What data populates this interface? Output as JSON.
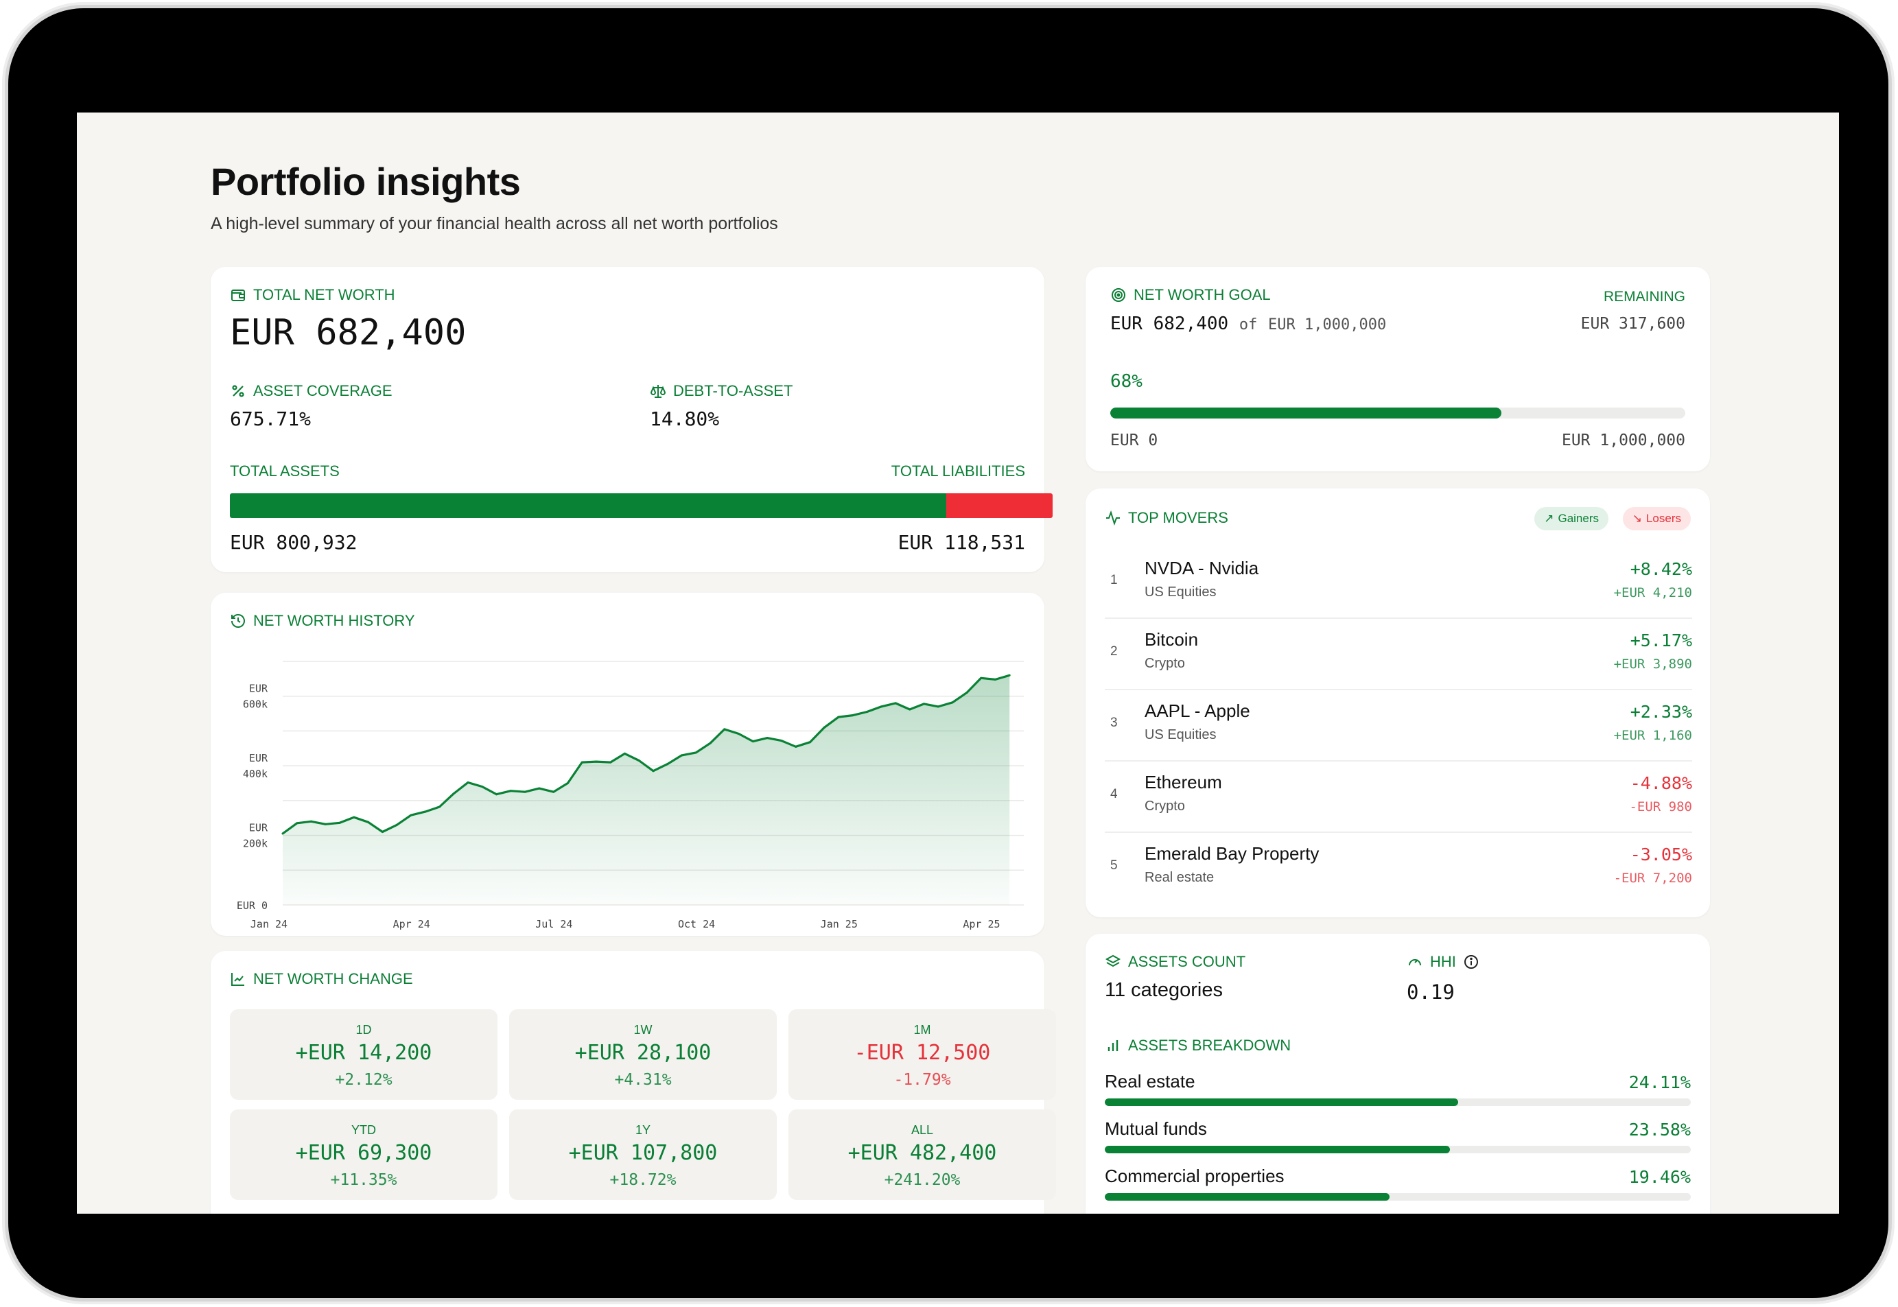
{
  "page": {
    "title": "Portfolio insights",
    "subtitle": "A high-level summary of your financial health across all net worth portfolios"
  },
  "net_worth": {
    "label": "TOTAL NET WORTH",
    "value": "EUR 682,400",
    "asset_coverage_label": "ASSET COVERAGE",
    "asset_coverage_value": "675.71%",
    "debt_to_asset_label": "DEBT-TO-ASSET",
    "debt_to_asset_value": "14.80%",
    "total_assets_label": "TOTAL ASSETS",
    "total_liabilities_label": "TOTAL LIABILITIES",
    "total_assets_value": "EUR 800,932",
    "total_liabilities_value": "EUR 118,531",
    "assets_share": 0.871
  },
  "history": {
    "label": "NET WORTH HISTORY"
  },
  "chart_data": {
    "type": "area",
    "title": "",
    "xlabel": "",
    "ylabel": "",
    "y_ticks": [
      {
        "value": 0,
        "lines": [
          "EUR 0"
        ]
      },
      {
        "value": 200000,
        "lines": [
          "EUR",
          "200k"
        ]
      },
      {
        "value": 400000,
        "lines": [
          "EUR",
          "400k"
        ]
      },
      {
        "value": 600000,
        "lines": [
          "EUR",
          "600k"
        ]
      }
    ],
    "x_ticks": [
      {
        "t": 0,
        "label": "Jan 24"
      },
      {
        "t": 3,
        "label": "Apr 24"
      },
      {
        "t": 6,
        "label": "Jul 24"
      },
      {
        "t": 9,
        "label": "Oct 24"
      },
      {
        "t": 12,
        "label": "Jan 25"
      },
      {
        "t": 15,
        "label": "Apr 25"
      }
    ],
    "ylim": [
      0,
      700000
    ],
    "xlim": [
      0,
      15.6
    ],
    "grid": true,
    "color": "#0a8236",
    "series": [
      {
        "x": [
          0,
          0.3,
          0.6,
          0.9,
          1.2,
          1.5,
          1.8,
          2.1,
          2.4,
          2.7,
          3.0,
          3.3,
          3.6,
          3.9,
          4.2,
          4.5,
          4.8,
          5.1,
          5.4,
          5.7,
          6.0,
          6.3,
          6.6,
          6.9,
          7.2,
          7.5,
          7.8,
          8.1,
          8.4,
          8.7,
          9.0,
          9.3,
          9.6,
          9.9,
          10.2,
          10.5,
          10.8,
          11.1,
          11.4,
          11.7,
          12.0,
          12.3,
          12.6,
          12.9,
          13.2,
          13.5,
          13.8,
          14.1,
          14.4,
          14.7,
          15.0,
          15.3
        ],
        "values": [
          205000,
          235000,
          240000,
          232000,
          236000,
          252000,
          238000,
          210000,
          230000,
          258000,
          268000,
          282000,
          320000,
          352000,
          340000,
          318000,
          328000,
          325000,
          335000,
          325000,
          350000,
          410000,
          412000,
          410000,
          435000,
          415000,
          385000,
          405000,
          430000,
          438000,
          465000,
          505000,
          492000,
          470000,
          480000,
          472000,
          455000,
          468000,
          510000,
          540000,
          545000,
          555000,
          570000,
          580000,
          562000,
          578000,
          570000,
          582000,
          610000,
          652000,
          648000,
          660000
        ]
      }
    ]
  },
  "change": {
    "label": "NET WORTH CHANGE",
    "tiles": [
      {
        "period": "1D",
        "amount": "+EUR 14,200",
        "pct": "+2.12%",
        "positive": true
      },
      {
        "period": "1W",
        "amount": "+EUR 28,100",
        "pct": "+4.31%",
        "positive": true
      },
      {
        "period": "1M",
        "amount": "-EUR 12,500",
        "pct": "-1.79%",
        "positive": false
      },
      {
        "period": "YTD",
        "amount": "+EUR 69,300",
        "pct": "+11.35%",
        "positive": true
      },
      {
        "period": "1Y",
        "amount": "+EUR 107,800",
        "pct": "+18.72%",
        "positive": true
      },
      {
        "period": "ALL",
        "amount": "+EUR 482,400",
        "pct": "+241.20%",
        "positive": true
      }
    ]
  },
  "goal": {
    "label": "NET WORTH GOAL",
    "current": "EUR 682,400",
    "of_text": "of",
    "target": "EUR 1,000,000",
    "remaining_label": "REMAINING",
    "remaining_value": "EUR 317,600",
    "progress_text": "68%",
    "progress": 0.68,
    "min_label": "EUR 0",
    "max_label": "EUR 1,000,000"
  },
  "movers": {
    "label": "TOP MOVERS",
    "gainers_label": "Gainers",
    "losers_label": "Losers",
    "items": [
      {
        "rank": "1",
        "name": "NVDA - Nvidia",
        "category": "US Equities",
        "pct": "+8.42%",
        "amount": "+EUR 4,210",
        "positive": true
      },
      {
        "rank": "2",
        "name": "Bitcoin",
        "category": "Crypto",
        "pct": "+5.17%",
        "amount": "+EUR 3,890",
        "positive": true
      },
      {
        "rank": "3",
        "name": "AAPL - Apple",
        "category": "US Equities",
        "pct": "+2.33%",
        "amount": "+EUR 1,160",
        "positive": true
      },
      {
        "rank": "4",
        "name": "Ethereum",
        "category": "Crypto",
        "pct": "-4.88%",
        "amount": "-EUR 980",
        "positive": false
      },
      {
        "rank": "5",
        "name": "Emerald Bay Property",
        "category": "Real estate",
        "pct": "-3.05%",
        "amount": "-EUR 7,200",
        "positive": false
      }
    ]
  },
  "assets": {
    "count_label": "ASSETS COUNT",
    "count_value": "11 categories",
    "hhi_label": "HHI",
    "hhi_value": "0.19",
    "breakdown_label": "ASSETS BREAKDOWN",
    "breakdown": [
      {
        "name": "Real estate",
        "pct": "24.11%",
        "share": 0.2411
      },
      {
        "name": "Mutual funds",
        "pct": "23.58%",
        "share": 0.2358
      },
      {
        "name": "Commercial properties",
        "pct": "19.46%",
        "share": 0.1946
      }
    ]
  },
  "colors": {
    "accent": "#0a7f35",
    "bar_green": "#0a8236",
    "negative": "#e5323a",
    "background": "#f6f5f2"
  }
}
